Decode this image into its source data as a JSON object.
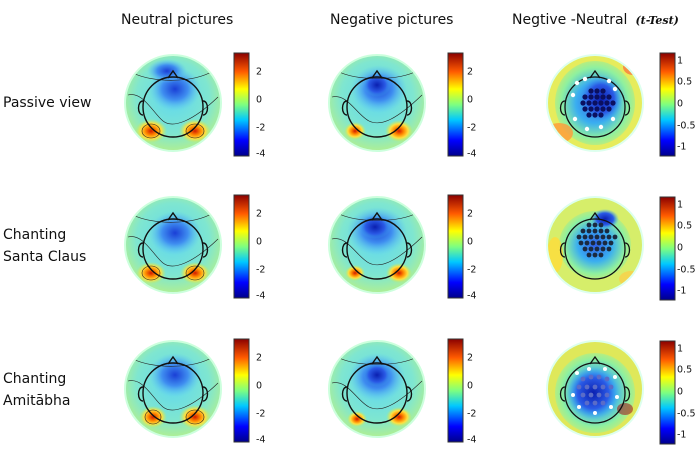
{
  "headers": {
    "neutral": "Neutral pictures",
    "negative": "Negative pictures",
    "diff": "Negtive -Neutral",
    "ttest": "(t-Test)"
  },
  "rows": [
    {
      "line1": "Passive view",
      "line2": ""
    },
    {
      "line1": "Chanting",
      "line2": "Santa Claus"
    },
    {
      "line1": "Chanting",
      "line2": "Amitābha"
    }
  ],
  "colorbar_voltage": {
    "ticks": [
      "2",
      "0",
      "-2",
      "-4"
    ],
    "range": [
      -4,
      3.5
    ]
  },
  "colorbar_ttest": {
    "ticks": [
      "1",
      "0.5",
      "0",
      "-0.5",
      "-1"
    ],
    "range": [
      -1.2,
      1.2
    ]
  },
  "colors": {
    "low": "#00008b",
    "mid": "#00e5ff",
    "zero": "#7fff7f",
    "high": "#ffd000",
    "max": "#8b0000"
  }
}
